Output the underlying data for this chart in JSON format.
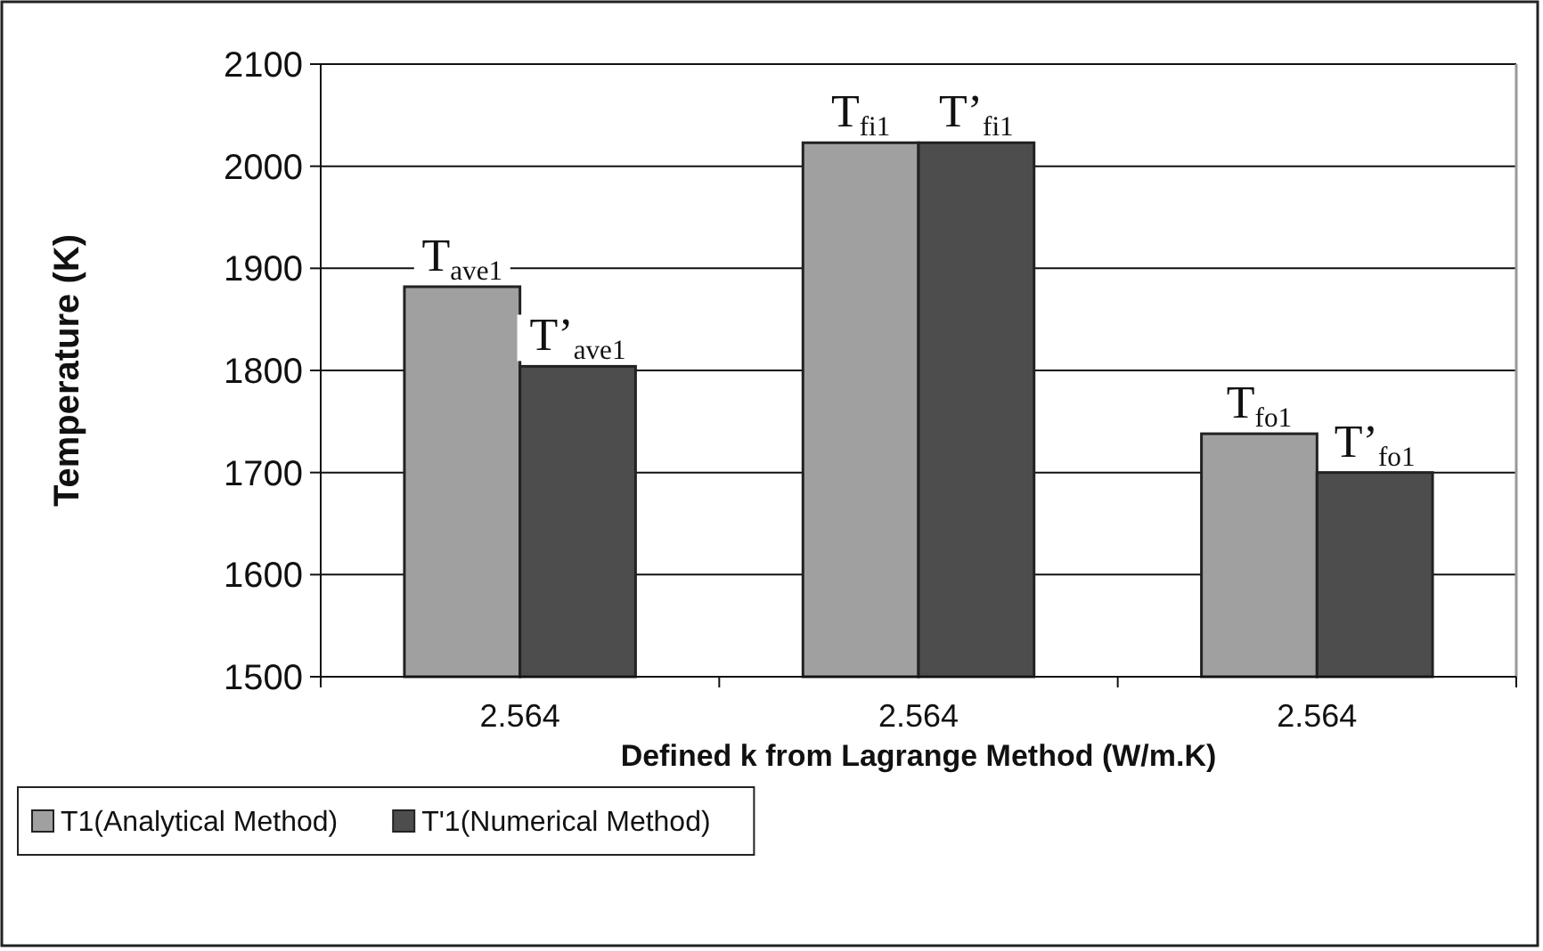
{
  "chart_data": {
    "type": "bar",
    "xlabel": "Defined k from Lagrange Method (W/m.K)",
    "ylabel": "Temperature (K)",
    "categories": [
      "2.564",
      "2.564",
      "2.564"
    ],
    "series": [
      {
        "name": "T1(Analytical Method)",
        "color": "#a0a0a0",
        "values": [
          1882,
          2023,
          1738
        ]
      },
      {
        "name": "T'1(Numerical Method)",
        "color": "#4d4d4d",
        "values": [
          1804,
          2023,
          1700
        ]
      }
    ],
    "ylim": [
      1500,
      2100
    ],
    "yticks": [
      1500,
      1600,
      1700,
      1800,
      1900,
      2000,
      2100
    ],
    "grid": "y",
    "legend": "bottom left",
    "annotations": [
      "T$_{ave1}$",
      "T’$_{ave1}$",
      "T$_{fi1}$",
      "T’$_{fi1}$",
      "T$_{fo1}$",
      "T’$_{fo1}$"
    ]
  }
}
